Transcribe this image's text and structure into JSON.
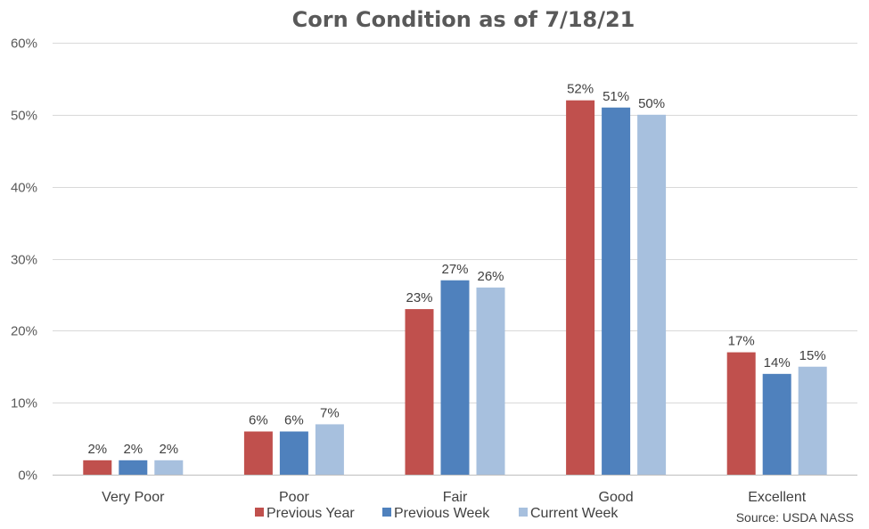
{
  "chart_data": {
    "type": "bar",
    "title": "Corn Condition as of 7/18/21",
    "xlabel": "",
    "ylabel": "",
    "ylim": [
      0,
      60
    ],
    "yticks": [
      0,
      10,
      20,
      30,
      40,
      50,
      60
    ],
    "yticks_labels": [
      "0%",
      "10%",
      "20%",
      "30%",
      "40%",
      "50%",
      "60%"
    ],
    "grid": true,
    "legend_position": "bottom",
    "categories": [
      "Very Poor",
      "Poor",
      "Fair",
      "Good",
      "Excellent"
    ],
    "series": [
      {
        "name": "Previous Year",
        "color": "#c0504d",
        "values": [
          2,
          6,
          23,
          52,
          17
        ],
        "labels": [
          "2%",
          "6%",
          "23%",
          "52%",
          "17%"
        ]
      },
      {
        "name": "Previous Week",
        "color": "#4f81bd",
        "values": [
          2,
          6,
          27,
          51,
          14
        ],
        "labels": [
          "2%",
          "6%",
          "27%",
          "51%",
          "14%"
        ]
      },
      {
        "name": "Current Week",
        "color": "#a7c0de",
        "values": [
          2,
          7,
          26,
          50,
          15
        ],
        "labels": [
          "2%",
          "7%",
          "26%",
          "50%",
          "15%"
        ]
      }
    ],
    "source": "Source: USDA NASS"
  }
}
